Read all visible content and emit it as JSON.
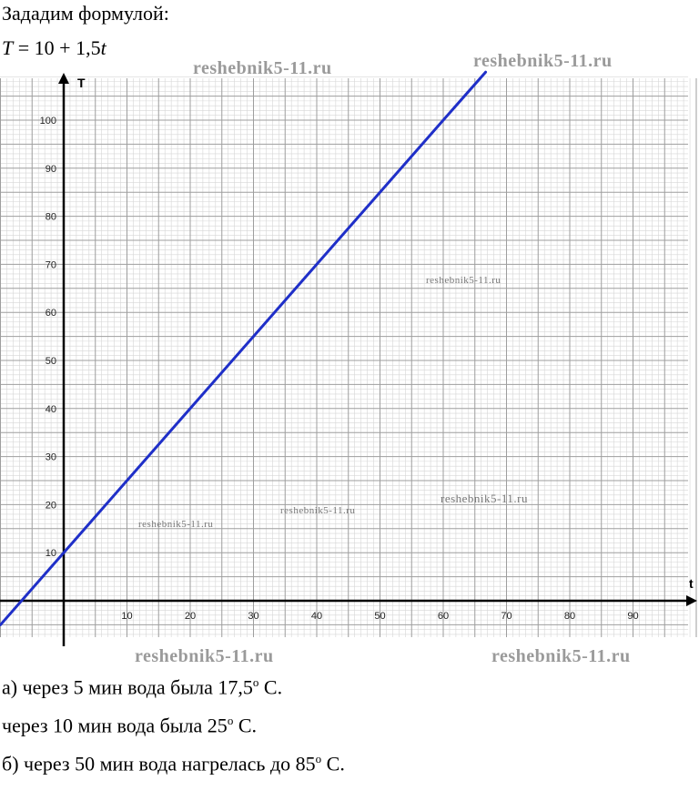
{
  "intro": "Зададим формулой:",
  "formula": {
    "lhs": "T",
    "eq": " = 10 + 1,5",
    "var": "t"
  },
  "watermarks": {
    "text": "reshebnik5-11.ru",
    "top_left": "reshebnik5-11.ru",
    "top_right": "reshebnik5-11.ru",
    "mid_right": "reshebnik5-11.ru",
    "center": "reshebnik5-11.ru",
    "lower_left": "reshebnik5-11.ru",
    "lower_right_mid": "reshebnik5-11.ru",
    "bottom_left": "reshebnik5-11.ru",
    "bottom_right": "reshebnik5-11.ru"
  },
  "answers": [
    {
      "text": "а) через 5 мин вода была 17,5",
      "sup": "о",
      "tail": " С."
    },
    {
      "text": "через 10 мин вода была 25",
      "sup": "о",
      "tail": " С."
    },
    {
      "text": "б) через 50 мин вода нагрелась до 85",
      "sup": "о",
      "tail": " С."
    }
  ],
  "chart_data": {
    "type": "line",
    "xlabel": "t",
    "ylabel": "T",
    "x_ticks": [
      10,
      20,
      30,
      40,
      50,
      60,
      70,
      80,
      90
    ],
    "y_ticks": [
      10,
      20,
      30,
      40,
      50,
      60,
      70,
      80,
      90,
      100
    ],
    "xlim": [
      -10,
      100
    ],
    "ylim": [
      -10,
      110
    ],
    "grid": true,
    "series": [
      {
        "color": "#1f2fc8",
        "x": [
          -10,
          0,
          5,
          10,
          20,
          30,
          40,
          50,
          60,
          66.7
        ],
        "y": [
          -5,
          10,
          17.5,
          25,
          40,
          55,
          70,
          85,
          100,
          110
        ]
      }
    ]
  }
}
